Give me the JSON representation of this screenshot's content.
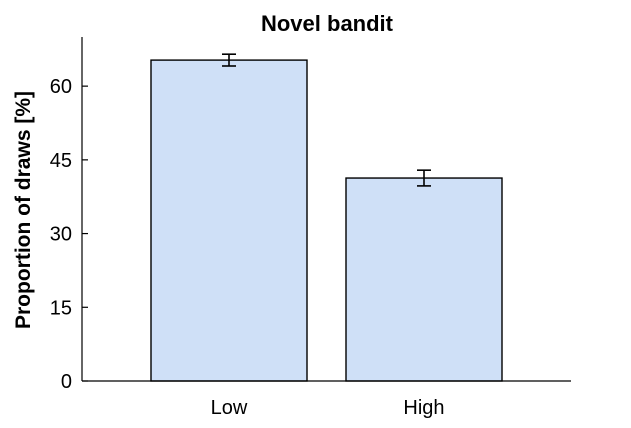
{
  "chart_data": {
    "type": "bar",
    "title": "Novel bandit",
    "xlabel": "",
    "ylabel": "Proportion of draws [%]",
    "categories": [
      "Low",
      "High"
    ],
    "values": [
      65.3,
      41.3
    ],
    "error": [
      1.2,
      1.6
    ],
    "ylim": [
      0,
      70
    ],
    "yticks": [
      0,
      15,
      30,
      45,
      60
    ],
    "grid": false,
    "bar_color": "#cfe0f7",
    "edge_color": "#000000"
  }
}
